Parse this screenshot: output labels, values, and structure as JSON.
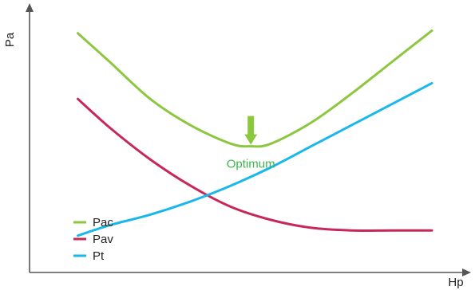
{
  "chart_data": {
    "type": "line",
    "xlabel": "Hp",
    "ylabel": "Pa",
    "xlim": [
      0,
      100
    ],
    "ylim": [
      0,
      100
    ],
    "grid": false,
    "legend_position": "bottom-left",
    "series": [
      {
        "name": "Pac",
        "color": "#8dc63f",
        "x": [
          12,
          20,
          30,
          40,
          50,
          55,
          60,
          70,
          80,
          90,
          100
        ],
        "y": [
          91,
          80,
          66,
          56,
          49,
          48,
          49,
          57,
          68,
          80,
          92
        ]
      },
      {
        "name": "Pav",
        "color": "#c7285a",
        "x": [
          12,
          20,
          30,
          40,
          50,
          60,
          70,
          80,
          90,
          100
        ],
        "y": [
          66,
          55,
          43,
          33,
          25,
          20,
          17,
          16,
          16,
          16
        ]
      },
      {
        "name": "Pt",
        "color": "#1ab7ea",
        "x": [
          12,
          20,
          30,
          40,
          50,
          60,
          70,
          80,
          90,
          100
        ],
        "y": [
          14,
          18,
          22,
          27,
          33,
          40,
          48,
          56,
          64,
          72
        ]
      }
    ],
    "annotations": [
      {
        "text": "Optimum",
        "x": 55,
        "y": 48,
        "color": "#3db54a",
        "arrow_color": "#8dc63f"
      }
    ]
  }
}
